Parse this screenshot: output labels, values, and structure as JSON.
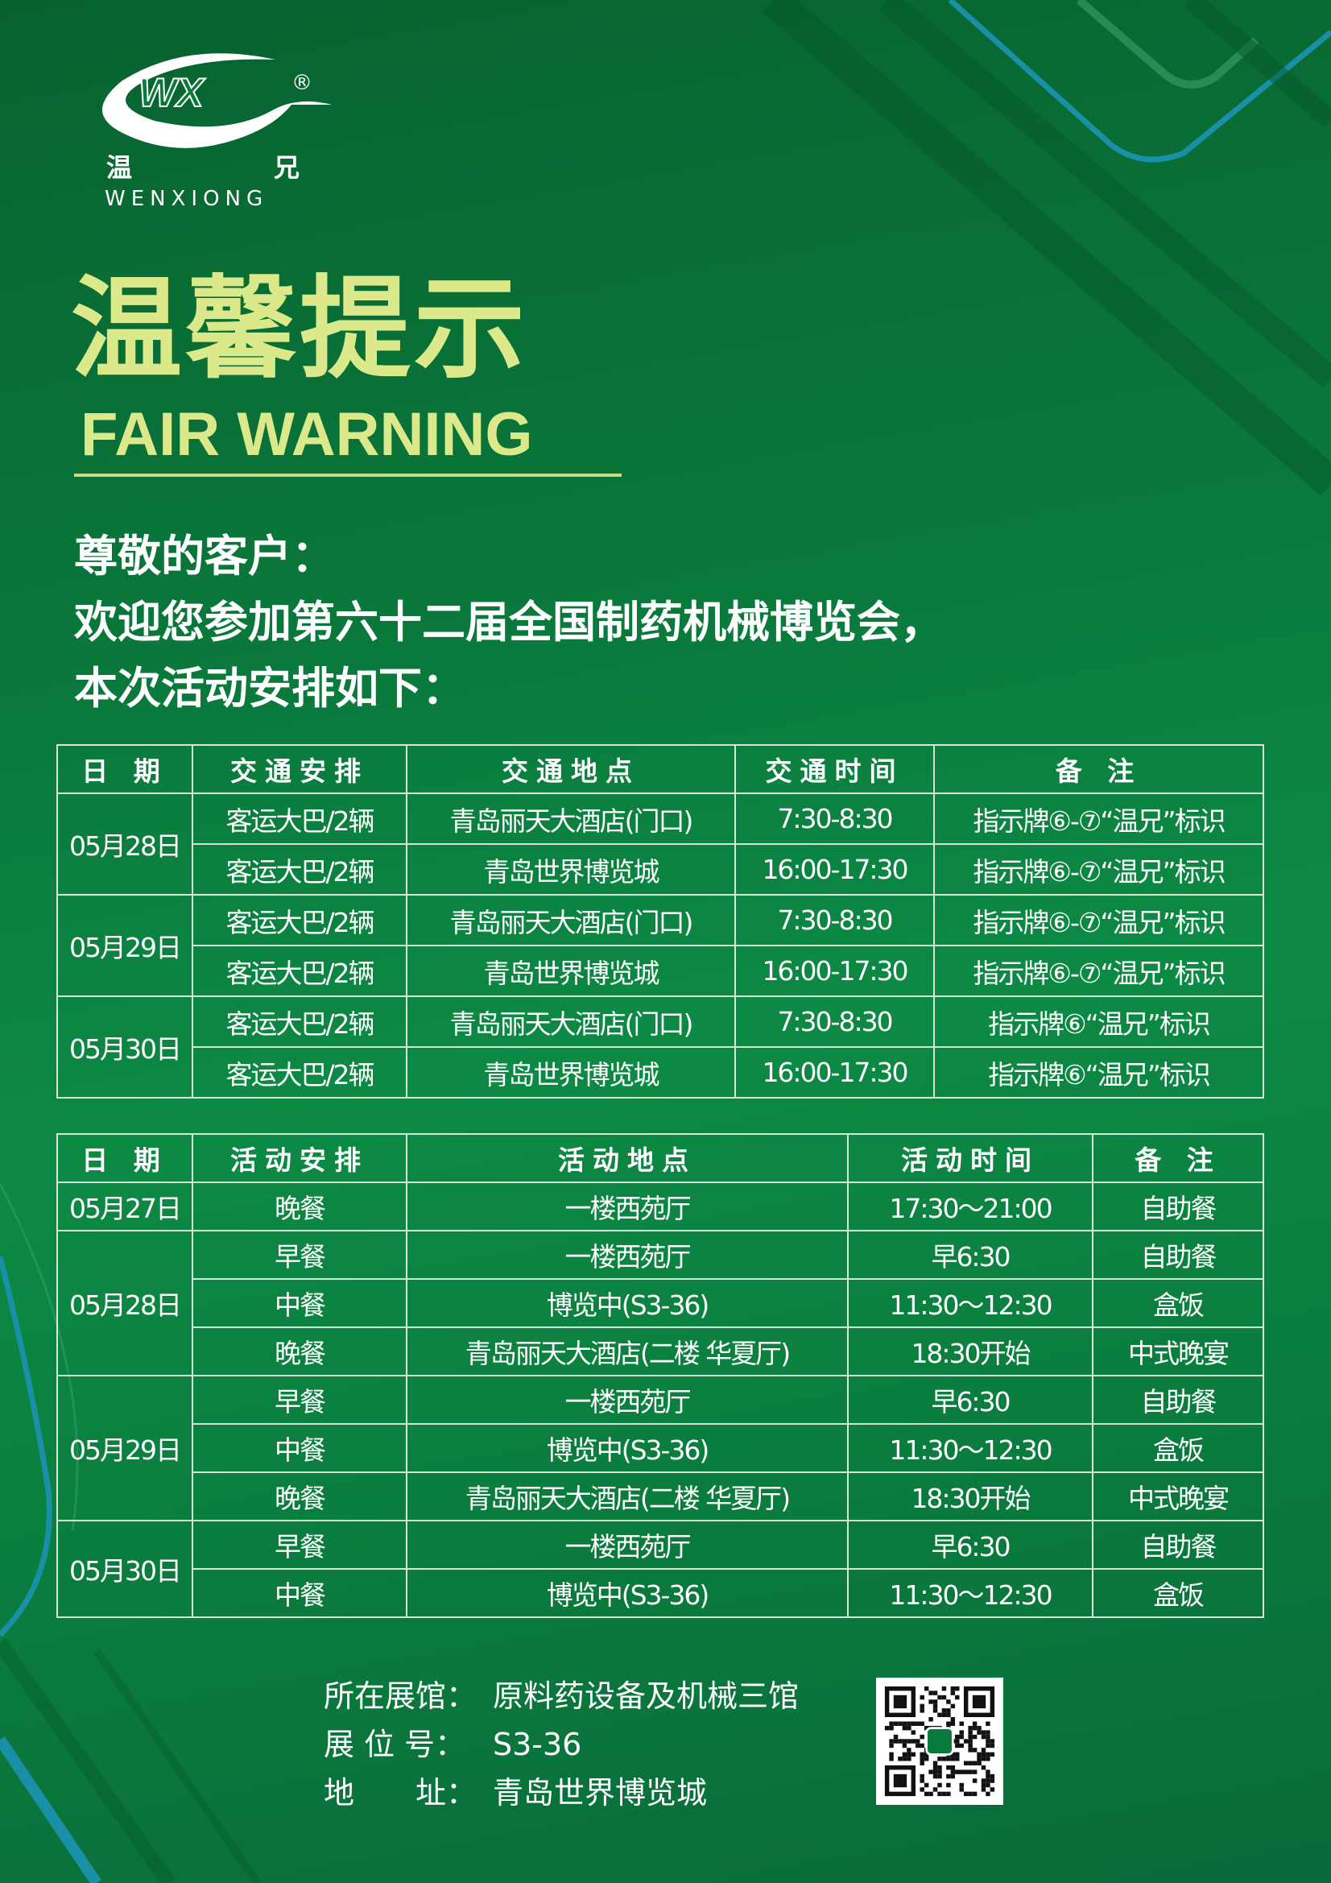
{
  "brand": {
    "logo_letters": "WX",
    "registered": "®",
    "name_cn_1": "温",
    "name_cn_2": "兄",
    "name_en": "WENXIONG"
  },
  "colors": {
    "background": "#0a7a3c",
    "title": "#dbe98a",
    "accent_line": "#1a8fa8",
    "table_border": "#d6e9d6"
  },
  "title": {
    "cn": "温馨提示",
    "en": "FAIR WARNING"
  },
  "greeting": {
    "line1": "尊敬的客户：",
    "line2": "欢迎您参加第六十二届全国制药机械博览会，",
    "line3": "本次活动安排如下："
  },
  "transport_table": {
    "headers": [
      "日 期",
      "交通安排",
      "交通地点",
      "交通时间",
      "备 注"
    ],
    "groups": [
      {
        "date": "05月28日",
        "rows": [
          [
            "客运大巴/2辆",
            "青岛丽天大酒店(门口)",
            "7:30-8:30",
            "指示牌⑥-⑦“温兄”标识"
          ],
          [
            "客运大巴/2辆",
            "青岛世界博览城",
            "16:00-17:30",
            "指示牌⑥-⑦“温兄”标识"
          ]
        ]
      },
      {
        "date": "05月29日",
        "rows": [
          [
            "客运大巴/2辆",
            "青岛丽天大酒店(门口)",
            "7:30-8:30",
            "指示牌⑥-⑦“温兄”标识"
          ],
          [
            "客运大巴/2辆",
            "青岛世界博览城",
            "16:00-17:30",
            "指示牌⑥-⑦“温兄”标识"
          ]
        ]
      },
      {
        "date": "05月30日",
        "rows": [
          [
            "客运大巴/2辆",
            "青岛丽天大酒店(门口)",
            "7:30-8:30",
            "指示牌⑥“温兄”标识"
          ],
          [
            "客运大巴/2辆",
            "青岛世界博览城",
            "16:00-17:30",
            "指示牌⑥“温兄”标识"
          ]
        ]
      }
    ]
  },
  "activity_table": {
    "headers": [
      "日 期",
      "活动安排",
      "活动地点",
      "活动时间",
      "备 注"
    ],
    "groups": [
      {
        "date": "05月27日",
        "rows": [
          [
            "晚餐",
            "一楼西苑厅",
            "17:30～21:00",
            "自助餐"
          ]
        ]
      },
      {
        "date": "05月28日",
        "rows": [
          [
            "早餐",
            "一楼西苑厅",
            "早6:30",
            "自助餐"
          ],
          [
            "中餐",
            "博览中(S3-36)",
            "11:30～12:30",
            "盒饭"
          ],
          [
            "晚餐",
            "青岛丽天大酒店(二楼 华夏厅)",
            "18:30开始",
            "中式晚宴"
          ]
        ]
      },
      {
        "date": "05月29日",
        "rows": [
          [
            "早餐",
            "一楼西苑厅",
            "早6:30",
            "自助餐"
          ],
          [
            "中餐",
            "博览中(S3-36)",
            "11:30～12:30",
            "盒饭"
          ],
          [
            "晚餐",
            "青岛丽天大酒店(二楼 华夏厅)",
            "18:30开始",
            "中式晚宴"
          ]
        ]
      },
      {
        "date": "05月30日",
        "rows": [
          [
            "早餐",
            "一楼西苑厅",
            "早6:30",
            "自助餐"
          ],
          [
            "中餐",
            "博览中(S3-36)",
            "11:30～12:30",
            "盒饭"
          ]
        ]
      }
    ]
  },
  "info": [
    {
      "label": "所在展馆：",
      "value": "原料药设备及机械三馆"
    },
    {
      "label": "展 位 号：",
      "value": "S3-36"
    },
    {
      "label": "地　　址：",
      "value": "青岛世界博览城"
    }
  ],
  "qr_icon": "qr-code-icon"
}
